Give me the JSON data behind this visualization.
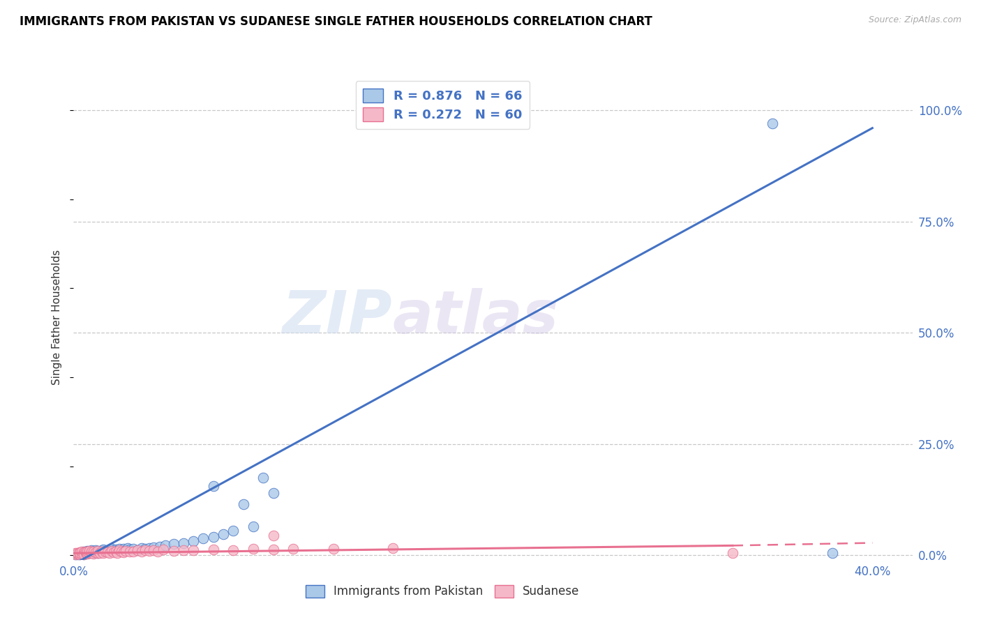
{
  "title": "IMMIGRANTS FROM PAKISTAN VS SUDANESE SINGLE FATHER HOUSEHOLDS CORRELATION CHART",
  "source": "Source: ZipAtlas.com",
  "ylabel": "Single Father Households",
  "ytick_labels": [
    "0.0%",
    "25.0%",
    "50.0%",
    "75.0%",
    "100.0%"
  ],
  "ytick_values": [
    0.0,
    0.25,
    0.5,
    0.75,
    1.0
  ],
  "xtick_labels": [
    "0.0%",
    "40.0%"
  ],
  "xtick_values": [
    0.0,
    0.4
  ],
  "xlim": [
    0.0,
    0.42
  ],
  "ylim": [
    -0.01,
    1.08
  ],
  "blue_R": 0.876,
  "blue_N": 66,
  "pink_R": 0.272,
  "pink_N": 60,
  "blue_fill_color": "#aac8e8",
  "blue_edge_color": "#4472c4",
  "pink_fill_color": "#f5b8c8",
  "pink_edge_color": "#e87090",
  "blue_line_color": "#4472c4",
  "pink_line_color": "#e87090",
  "legend_label_blue": "Immigrants from Pakistan",
  "legend_label_pink": "Sudanese",
  "watermark_zip": "ZIP",
  "watermark_atlas": "atlas",
  "background_color": "#ffffff",
  "grid_color": "#c8c8c8",
  "axis_label_color": "#4472c4",
  "blue_line_x0": 0.0,
  "blue_line_y0": -0.02,
  "blue_line_x1": 0.4,
  "blue_line_y1": 0.96,
  "pink_line_x0": 0.0,
  "pink_line_y0": 0.005,
  "pink_line_x1_solid": 0.33,
  "pink_line_y1_solid": 0.022,
  "pink_line_x1_dash": 0.4,
  "pink_line_y1_dash": 0.028,
  "blue_scatter_x": [
    0.001,
    0.002,
    0.002,
    0.003,
    0.003,
    0.003,
    0.004,
    0.004,
    0.005,
    0.005,
    0.005,
    0.006,
    0.006,
    0.006,
    0.007,
    0.007,
    0.007,
    0.008,
    0.008,
    0.009,
    0.009,
    0.01,
    0.01,
    0.011,
    0.011,
    0.012,
    0.012,
    0.013,
    0.014,
    0.015,
    0.015,
    0.016,
    0.017,
    0.018,
    0.019,
    0.02,
    0.021,
    0.022,
    0.023,
    0.024,
    0.025,
    0.026,
    0.027,
    0.028,
    0.03,
    0.032,
    0.034,
    0.036,
    0.038,
    0.04,
    0.043,
    0.046,
    0.05,
    0.055,
    0.06,
    0.065,
    0.07,
    0.075,
    0.08,
    0.09,
    0.07,
    0.1,
    0.095,
    0.085,
    0.35,
    0.38
  ],
  "blue_scatter_y": [
    0.002,
    0.004,
    0.003,
    0.005,
    0.003,
    0.006,
    0.004,
    0.007,
    0.005,
    0.003,
    0.008,
    0.006,
    0.004,
    0.009,
    0.005,
    0.007,
    0.01,
    0.006,
    0.008,
    0.007,
    0.011,
    0.005,
    0.009,
    0.008,
    0.012,
    0.006,
    0.01,
    0.009,
    0.011,
    0.008,
    0.013,
    0.01,
    0.012,
    0.009,
    0.014,
    0.011,
    0.013,
    0.01,
    0.015,
    0.012,
    0.014,
    0.011,
    0.016,
    0.013,
    0.015,
    0.012,
    0.017,
    0.014,
    0.016,
    0.018,
    0.02,
    0.022,
    0.025,
    0.028,
    0.032,
    0.038,
    0.042,
    0.048,
    0.055,
    0.065,
    0.155,
    0.14,
    0.175,
    0.115,
    0.97,
    0.005
  ],
  "pink_scatter_x": [
    0.001,
    0.001,
    0.002,
    0.002,
    0.003,
    0.003,
    0.003,
    0.004,
    0.004,
    0.005,
    0.005,
    0.005,
    0.006,
    0.006,
    0.007,
    0.007,
    0.008,
    0.008,
    0.009,
    0.009,
    0.01,
    0.01,
    0.011,
    0.012,
    0.012,
    0.013,
    0.014,
    0.015,
    0.016,
    0.017,
    0.018,
    0.019,
    0.02,
    0.021,
    0.022,
    0.023,
    0.024,
    0.025,
    0.026,
    0.028,
    0.03,
    0.032,
    0.034,
    0.036,
    0.038,
    0.04,
    0.042,
    0.045,
    0.05,
    0.055,
    0.06,
    0.07,
    0.08,
    0.09,
    0.1,
    0.11,
    0.13,
    0.16,
    0.33,
    0.1
  ],
  "pink_scatter_y": [
    0.003,
    0.005,
    0.004,
    0.006,
    0.003,
    0.007,
    0.005,
    0.004,
    0.008,
    0.005,
    0.007,
    0.003,
    0.006,
    0.009,
    0.004,
    0.008,
    0.005,
    0.01,
    0.006,
    0.008,
    0.004,
    0.009,
    0.007,
    0.005,
    0.01,
    0.006,
    0.008,
    0.005,
    0.009,
    0.007,
    0.006,
    0.01,
    0.007,
    0.009,
    0.006,
    0.011,
    0.008,
    0.007,
    0.01,
    0.009,
    0.008,
    0.011,
    0.009,
    0.012,
    0.01,
    0.011,
    0.009,
    0.013,
    0.01,
    0.012,
    0.011,
    0.013,
    0.012,
    0.014,
    0.013,
    0.015,
    0.014,
    0.016,
    0.005,
    0.045
  ]
}
